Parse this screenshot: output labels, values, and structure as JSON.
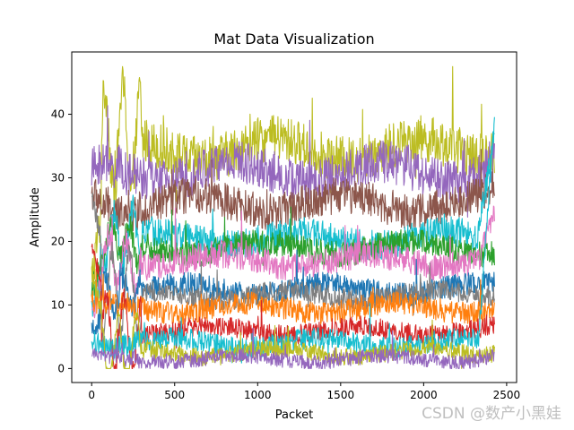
{
  "chart_data": {
    "type": "line",
    "title": "Mat Data Visualization",
    "xlabel": "Packet",
    "ylabel": "Amplitude",
    "xlim": [
      -120,
      2560
    ],
    "ylim": [
      -2.2,
      49.8
    ],
    "x_ticks": [
      0,
      500,
      1000,
      1500,
      2000,
      2500
    ],
    "x_tick_labels": [
      "0",
      "500",
      "1000",
      "1500",
      "2000",
      "2500"
    ],
    "y_ticks": [
      0,
      10,
      20,
      30,
      40
    ],
    "y_tick_labels": [
      "0",
      "10",
      "20",
      "30",
      "40"
    ],
    "legend": "none",
    "grid": false,
    "num_packets": 2430,
    "color_cycle": [
      "#1f77b4",
      "#ff7f0e",
      "#2ca02c",
      "#d62728",
      "#9467bd",
      "#8c564b",
      "#e377c2",
      "#7f7f7f",
      "#bcbd22",
      "#17becf"
    ],
    "series": [
      {
        "color": "#bcbd22",
        "center": 34.5,
        "spread": 2.8,
        "start": 14,
        "end": 36
      },
      {
        "color": "#9467bd",
        "center": 31.0,
        "spread": 2.6,
        "start": 30,
        "end": 33
      },
      {
        "color": "#8c564b",
        "center": 26.0,
        "spread": 2.2,
        "start": 28,
        "end": 28
      },
      {
        "color": "#17becf",
        "center": 20.5,
        "spread": 1.8,
        "start": 10,
        "end": 38
      },
      {
        "color": "#2ca02c",
        "center": 19.0,
        "spread": 1.6,
        "start": 12,
        "end": 19
      },
      {
        "color": "#e377c2",
        "center": 17.0,
        "spread": 1.7,
        "start": 8,
        "end": 24
      },
      {
        "color": "#1f77b4",
        "center": 12.5,
        "spread": 1.4,
        "start": 6,
        "end": 13
      },
      {
        "color": "#7f7f7f",
        "center": 11.5,
        "spread": 1.3,
        "start": 28,
        "end": 12
      },
      {
        "color": "#ff7f0e",
        "center": 9.5,
        "spread": 1.4,
        "start": 10,
        "end": 10
      },
      {
        "color": "#d62728",
        "center": 6.0,
        "spread": 1.2,
        "start": 20,
        "end": 6
      },
      {
        "color": "#17becf",
        "center": 4.0,
        "spread": 1.3,
        "start": 5,
        "end": 40
      },
      {
        "color": "#bcbd22",
        "center": 2.5,
        "spread": 1.1,
        "start": 15,
        "end": 3
      },
      {
        "color": "#9467bd",
        "center": 1.5,
        "spread": 0.9,
        "start": 2,
        "end": 2
      }
    ]
  },
  "watermark": "CSDN @数产小黑娃"
}
